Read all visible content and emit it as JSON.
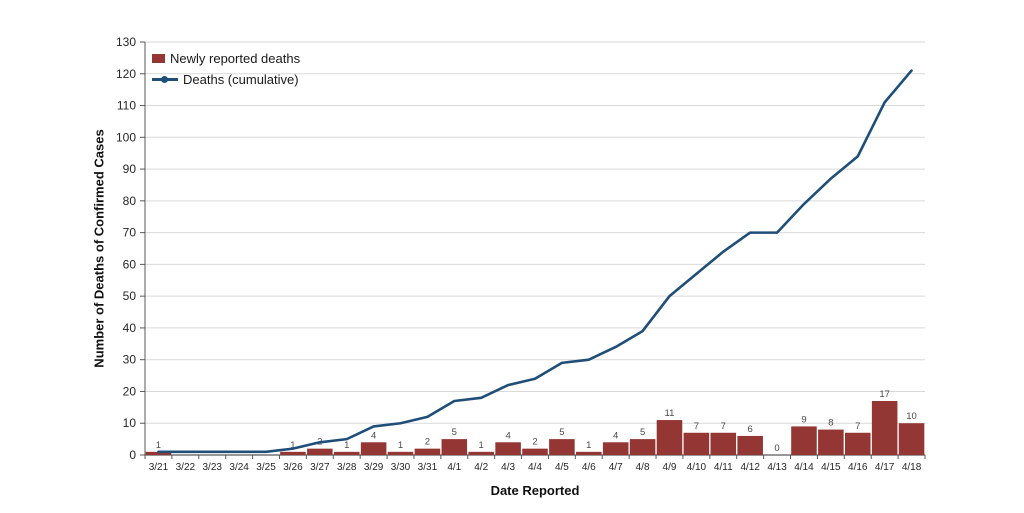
{
  "chart_data": {
    "type": "bar",
    "title": "",
    "xlabel": "Date Reported",
    "ylabel": "Number of Deaths of Confirmed Cases",
    "ylim": [
      0,
      130
    ],
    "ytick_step": 10,
    "grid": true,
    "legend_position": "top-left",
    "categories": [
      "3/21",
      "3/22",
      "3/23",
      "3/24",
      "3/25",
      "3/26",
      "3/27",
      "3/28",
      "3/29",
      "3/30",
      "3/31",
      "4/1",
      "4/2",
      "4/3",
      "4/4",
      "4/5",
      "4/6",
      "4/7",
      "4/8",
      "4/9",
      "4/10",
      "4/11",
      "4/12",
      "4/13",
      "4/14",
      "4/15",
      "4/16",
      "4/17",
      "4/18"
    ],
    "series": [
      {
        "name": "Newly reported deaths",
        "kind": "bar",
        "color": "#943634",
        "values": [
          1,
          0,
          0,
          0,
          0,
          1,
          2,
          1,
          4,
          1,
          2,
          5,
          1,
          4,
          2,
          5,
          1,
          4,
          5,
          11,
          7,
          7,
          6,
          0,
          9,
          8,
          7,
          17,
          10
        ],
        "labels": [
          "1",
          "",
          "",
          "",
          "",
          "1",
          "2",
          "1",
          "4",
          "1",
          "2",
          "5",
          "1",
          "4",
          "2",
          "5",
          "1",
          "4",
          "5",
          "11",
          "7",
          "7",
          "6",
          "0",
          "9",
          "8",
          "7",
          "17",
          "10"
        ]
      },
      {
        "name": "Deaths (cumulative)",
        "kind": "line",
        "color": "#1F4E79",
        "values": [
          1,
          1,
          1,
          1,
          1,
          2,
          4,
          5,
          9,
          10,
          12,
          17,
          18,
          22,
          24,
          29,
          30,
          34,
          39,
          50,
          57,
          64,
          70,
          70,
          79,
          87,
          94,
          111,
          121
        ]
      }
    ]
  },
  "styles": {
    "axis_color": "#595959",
    "grid_color": "#D9D9D9"
  }
}
